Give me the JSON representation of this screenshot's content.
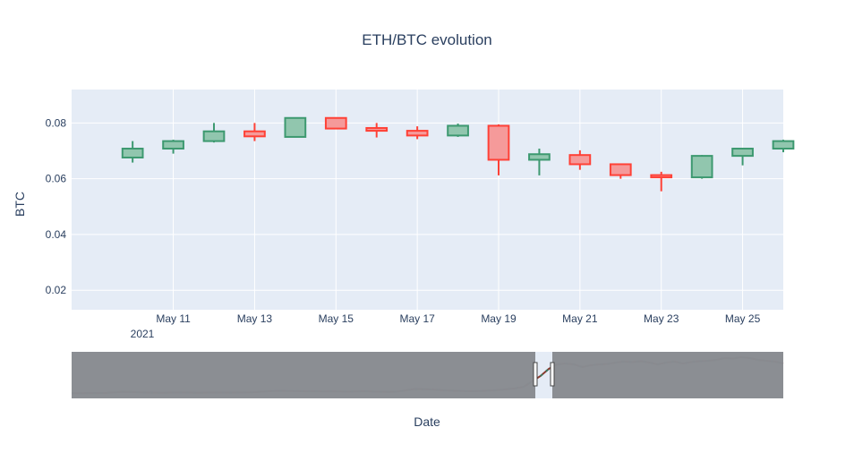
{
  "chart_data": {
    "type": "candlestick",
    "title": "ETH/BTC evolution",
    "xlabel": "Date",
    "ylabel": "BTC",
    "year_label": "2021",
    "ylim": [
      0.013,
      0.092
    ],
    "xlim": [
      "2021-05-09",
      "2021-05-26"
    ],
    "y_ticks": [
      0.02,
      0.04,
      0.06,
      0.08
    ],
    "y_tick_labels": [
      "0.02",
      "0.04",
      "0.06",
      "0.08"
    ],
    "x_ticks": [
      "2021-05-11",
      "2021-05-13",
      "2021-05-15",
      "2021-05-17",
      "2021-05-19",
      "2021-05-21",
      "2021-05-23",
      "2021-05-25"
    ],
    "x_tick_labels": [
      "May 11",
      "May 13",
      "May 15",
      "May 17",
      "May 19",
      "May 21",
      "May 23",
      "May 25"
    ],
    "grid": true,
    "colors": {
      "increasing_line": "#3d9970",
      "increasing_fill": "#91c6ae",
      "decreasing_line": "#ff4136",
      "decreasing_fill": "#f59a9a",
      "plot_bg": "#e5ecf6",
      "grid": "#ffffff",
      "rangeslider_mask": "#898c91"
    },
    "candles": [
      {
        "date": "2021-05-10",
        "open": 0.0676,
        "high": 0.0735,
        "low": 0.0658,
        "close": 0.0708
      },
      {
        "date": "2021-05-11",
        "open": 0.0708,
        "high": 0.074,
        "low": 0.069,
        "close": 0.0735
      },
      {
        "date": "2021-05-12",
        "open": 0.0735,
        "high": 0.08,
        "low": 0.073,
        "close": 0.077
      },
      {
        "date": "2021-05-13",
        "open": 0.077,
        "high": 0.08,
        "low": 0.0735,
        "close": 0.0752
      },
      {
        "date": "2021-05-14",
        "open": 0.075,
        "high": 0.082,
        "low": 0.0748,
        "close": 0.0818
      },
      {
        "date": "2021-05-15",
        "open": 0.0818,
        "high": 0.082,
        "low": 0.0778,
        "close": 0.078
      },
      {
        "date": "2021-05-16",
        "open": 0.0782,
        "high": 0.08,
        "low": 0.0748,
        "close": 0.0772
      },
      {
        "date": "2021-05-17",
        "open": 0.0772,
        "high": 0.0788,
        "low": 0.0742,
        "close": 0.0755
      },
      {
        "date": "2021-05-18",
        "open": 0.0755,
        "high": 0.0798,
        "low": 0.075,
        "close": 0.079
      },
      {
        "date": "2021-05-19",
        "open": 0.079,
        "high": 0.0795,
        "low": 0.0612,
        "close": 0.0668
      },
      {
        "date": "2021-05-20",
        "open": 0.0668,
        "high": 0.0708,
        "low": 0.0612,
        "close": 0.0688
      },
      {
        "date": "2021-05-21",
        "open": 0.0685,
        "high": 0.0702,
        "low": 0.0632,
        "close": 0.0652
      },
      {
        "date": "2021-05-22",
        "open": 0.0652,
        "high": 0.0655,
        "low": 0.06,
        "close": 0.0613
      },
      {
        "date": "2021-05-23",
        "open": 0.0613,
        "high": 0.0625,
        "low": 0.0555,
        "close": 0.0605
      },
      {
        "date": "2021-05-24",
        "open": 0.0605,
        "high": 0.0685,
        "low": 0.06,
        "close": 0.0682
      },
      {
        "date": "2021-05-25",
        "open": 0.0682,
        "high": 0.071,
        "low": 0.0648,
        "close": 0.0708
      },
      {
        "date": "2021-05-26",
        "open": 0.0708,
        "high": 0.074,
        "low": 0.0695,
        "close": 0.0735
      }
    ],
    "rangeslider": {
      "range_start": "2021-05-09",
      "range_end": "2021-05-26",
      "selected_start": "2021-05-09",
      "selected_end": "2021-05-26",
      "overview_profile": [
        0.0055,
        0.0056,
        0.0058,
        0.0057,
        0.006,
        0.0075,
        0.0085,
        0.0082,
        0.0078,
        0.007,
        0.0068,
        0.0066,
        0.007,
        0.0074,
        0.007,
        0.0066,
        0.0068,
        0.0071,
        0.007,
        0.0069,
        0.0072,
        0.0074,
        0.008,
        0.0092,
        0.0104,
        0.011,
        0.0106,
        0.0102,
        0.0098,
        0.01,
        0.0096,
        0.0098,
        0.0094,
        0.009,
        0.0095,
        0.01,
        0.0093,
        0.0088,
        0.0082,
        0.0095,
        0.0125,
        0.015,
        0.0145,
        0.014,
        0.0128,
        0.0118,
        0.011,
        0.0102,
        0.01,
        0.0108,
        0.0118,
        0.013,
        0.0145,
        0.0165,
        0.02,
        0.032,
        0.044,
        0.06,
        0.07,
        0.072,
        0.07,
        0.064,
        0.068,
        0.07,
        0.071,
        0.074,
        0.076,
        0.075,
        0.077,
        0.074,
        0.07,
        0.074,
        0.076,
        0.072,
        0.075,
        0.077,
        0.078,
        0.08,
        0.084,
        0.083,
        0.086,
        0.084,
        0.08,
        0.078,
        0.076,
        0.072
      ]
    }
  }
}
